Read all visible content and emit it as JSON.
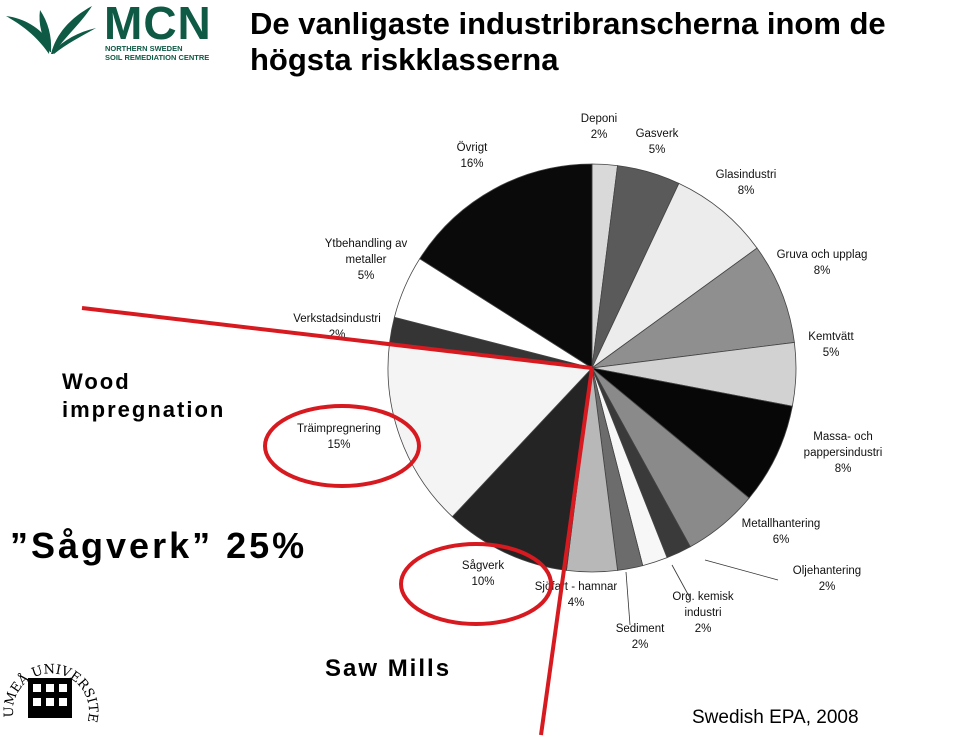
{
  "title": "De vanligaste industribranscherna inom de högsta riskklasserna",
  "logo_mcn": {
    "name": "MCN",
    "line1": "NORTHERN SWEDEN",
    "line2": "SOIL REMEDIATION CENTRE",
    "color": "#0e5a44"
  },
  "logo_umea": {
    "text": "UMEÅ UNIVERSITET"
  },
  "annotations": {
    "wood": "Wood impregnation",
    "sagverk": "”Sågverk” 25%",
    "sawmills": "Saw Mills",
    "source": "Swedish EPA, 2008"
  },
  "highlight_color": "#d71920",
  "chart_data": {
    "type": "pie",
    "slices": [
      {
        "label": "Deponi",
        "value": 2,
        "color": "#d9d9d9"
      },
      {
        "label": "Gasverk",
        "value": 5,
        "color": "#5a5a5a"
      },
      {
        "label": "Glasindustri",
        "value": 8,
        "color": "#ececec"
      },
      {
        "label": "Gruva och upplag",
        "value": 8,
        "color": "#8f8f8f"
      },
      {
        "label": "Kemtvätt",
        "value": 5,
        "color": "#d2d2d2"
      },
      {
        "label": "Massa- och pappersindustri",
        "value": 8,
        "color": "#070707"
      },
      {
        "label": "Metallhantering",
        "value": 6,
        "color": "#8a8a8a"
      },
      {
        "label": "Oljehantering",
        "value": 2,
        "color": "#3a3a3a"
      },
      {
        "label": "Org. kemisk industri",
        "value": 2,
        "color": "#f7f7f7"
      },
      {
        "label": "Sediment",
        "value": 2,
        "color": "#6c6c6c"
      },
      {
        "label": "Sjöfart - hamnar",
        "value": 4,
        "color": "#b8b8b8"
      },
      {
        "label": "Sågverk",
        "value": 10,
        "color": "#242424"
      },
      {
        "label": "Träimpregnering",
        "value": 15,
        "color": "#f4f4f4"
      },
      {
        "label": "Verkstadsindustri",
        "value": 2,
        "color": "#353535"
      },
      {
        "label": "Ytbehandling av metaller",
        "value": 5,
        "color": "#ffffff"
      },
      {
        "label": "Övrigt",
        "value": 16,
        "color": "#0a0a0a"
      }
    ]
  }
}
